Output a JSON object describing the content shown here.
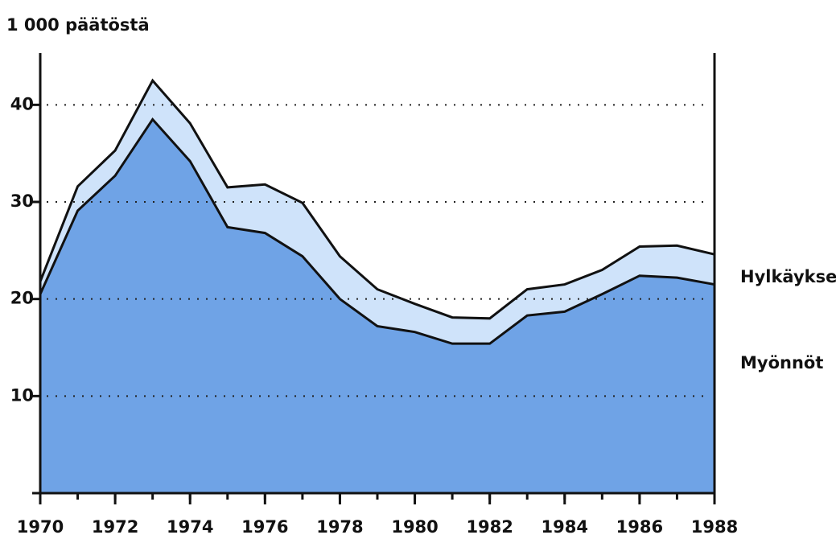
{
  "chart_data": {
    "type": "stacked-area",
    "y_label": "1 000 päätöstä",
    "x": [
      1970,
      1971,
      1972,
      1973,
      1974,
      1975,
      1976,
      1977,
      1978,
      1979,
      1980,
      1981,
      1982,
      1983,
      1984,
      1985,
      1986,
      1987,
      1988
    ],
    "series": [
      {
        "name": "Myönnöt",
        "color": "#6fa3e6",
        "values": [
          20.5,
          29.1,
          32.7,
          38.5,
          34.2,
          27.4,
          26.8,
          24.4,
          20.0,
          17.2,
          16.6,
          15.4,
          15.4,
          18.3,
          18.7,
          20.5,
          22.4,
          22.2,
          21.5
        ]
      },
      {
        "name": "Hylkäykset",
        "color": "#cfe3fa",
        "values": [
          1.3,
          2.5,
          2.6,
          4.0,
          3.9,
          4.1,
          5.0,
          5.5,
          4.4,
          3.8,
          2.9,
          2.7,
          2.6,
          2.7,
          2.8,
          2.5,
          3.0,
          3.3,
          3.1
        ]
      }
    ],
    "xlim": [
      1970,
      1988
    ],
    "xticks": [
      1970,
      1972,
      1974,
      1976,
      1978,
      1980,
      1982,
      1984,
      1986,
      1988
    ],
    "ylim": [
      0,
      45
    ],
    "yticks": [
      10,
      20,
      30,
      40
    ],
    "grid": true
  }
}
